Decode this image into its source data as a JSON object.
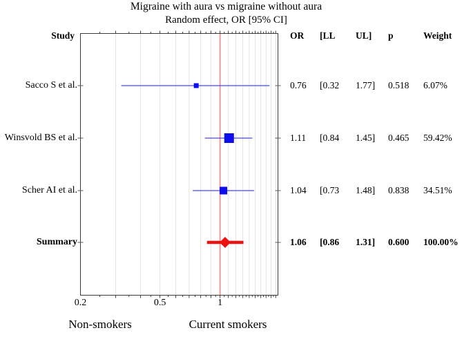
{
  "colors": {
    "study_marker": "#0d0dee",
    "study_ci_line": "#4646ff",
    "summary": "#ee1111",
    "ref_line": "#f29090",
    "grid": "#e3e3e3",
    "frame": "#3a3a3a",
    "row_tick": "#555555"
  },
  "chart_data": {
    "type": "forest",
    "title": "Migraine with aura vs migraine without aura",
    "subtitle": "Random effect, OR [95% CI]",
    "x_scale": "log",
    "x_domain": [
      0.2,
      1.95
    ],
    "x_ticks": [
      {
        "v": 0.2,
        "label": "0.2"
      },
      {
        "v": 0.5,
        "label": "0.5"
      },
      {
        "v": 1,
        "label": "1"
      }
    ],
    "grid": {
      "from": 0.3,
      "to": 1.9,
      "step": 0.1
    },
    "minor_ticks": {
      "from": 0.25,
      "to": 1.9,
      "step": 0.05
    },
    "ref_line": 1,
    "columns": {
      "study": "Study",
      "or": "OR",
      "ll": "[LL",
      "ul": "UL]",
      "p": "p",
      "weight": "Weight"
    },
    "rows": [
      {
        "study": "Sacco S et al.",
        "or": 0.76,
        "ll": 0.32,
        "ul": 1.77,
        "or_label": "0.76",
        "ll_label": "[0.32",
        "ul_label": "1.77]",
        "p_label": "0.518",
        "weight_label": "6.07%",
        "weight_pct": 6.07,
        "marker": "square",
        "marker_size": 7
      },
      {
        "study": "Winsvold BS et al.",
        "or": 1.11,
        "ll": 0.84,
        "ul": 1.45,
        "or_label": "1.11",
        "ll_label": "[0.84",
        "ul_label": "1.45]",
        "p_label": "0.465",
        "weight_label": "59.42%",
        "weight_pct": 59.42,
        "marker": "square",
        "marker_size": 14
      },
      {
        "study": "Scher AI et al.",
        "or": 1.04,
        "ll": 0.73,
        "ul": 1.48,
        "or_label": "1.04",
        "ll_label": "[0.73",
        "ul_label": "1.48]",
        "p_label": "0.838",
        "weight_label": "34.51%",
        "weight_pct": 34.51,
        "marker": "square",
        "marker_size": 11
      },
      {
        "study": "Summary",
        "or": 1.06,
        "ll": 0.86,
        "ul": 1.31,
        "or_label": "1.06",
        "ll_label": "[0.86",
        "ul_label": "1.31]",
        "p_label": "0.600",
        "weight_label": "100.00%",
        "weight_pct": 100.0,
        "marker": "diamond",
        "marker_size": 16
      }
    ],
    "axis_group_labels": {
      "left": "Non-smokers",
      "right": "Current smokers"
    }
  }
}
